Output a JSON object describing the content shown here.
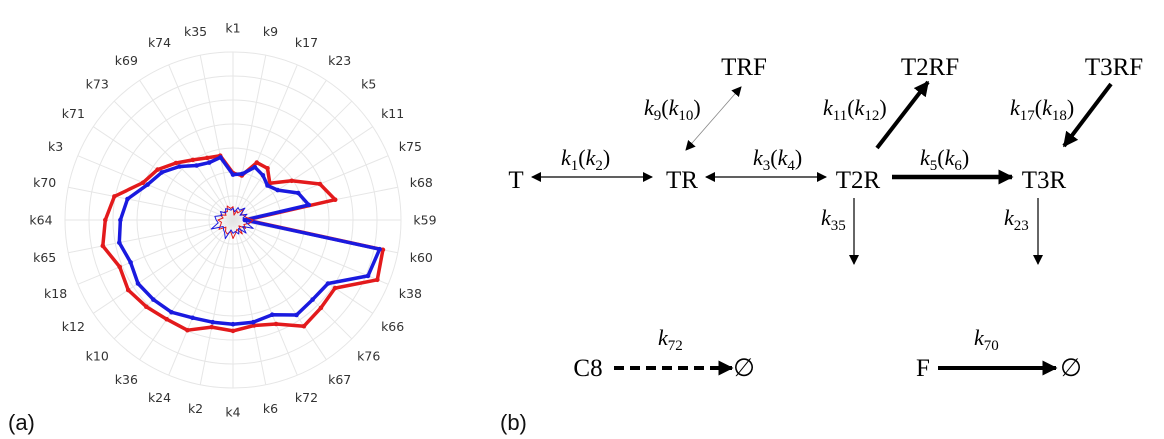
{
  "panel_labels": {
    "a": "(a)",
    "b": "(b)"
  },
  "chart_data": {
    "type": "radar",
    "categories": [
      "k1",
      "k9",
      "k17",
      "k23",
      "k5",
      "k11",
      "k75",
      "k68",
      "k59",
      "k60",
      "k38",
      "k66",
      "k76",
      "k67",
      "k72",
      "k6",
      "k4",
      "k2",
      "k24",
      "k36",
      "k10",
      "k12",
      "k18",
      "k65",
      "k64",
      "k70",
      "k3",
      "k71",
      "k73",
      "k69",
      "k74",
      "k35"
    ],
    "rlim": [
      0,
      1
    ],
    "grid": true,
    "series": [
      {
        "color": "#e31a1c",
        "line_width": 3.5,
        "values": [
          0.28,
          0.27,
          0.37,
          0.37,
          0.31,
          0.42,
          0.56,
          0.62,
          0.08,
          0.91,
          0.93,
          0.73,
          0.74,
          0.76,
          0.67,
          0.64,
          0.66,
          0.65,
          0.71,
          0.71,
          0.73,
          0.75,
          0.73,
          0.79,
          0.76,
          0.72,
          0.58,
          0.54,
          0.48,
          0.43,
          0.4,
          0.39
        ]
      },
      {
        "color": "#1a1adf",
        "line_width": 3.5,
        "values": [
          0.27,
          0.28,
          0.34,
          0.32,
          0.29,
          0.32,
          0.42,
          0.46,
          0.07,
          0.89,
          0.87,
          0.68,
          0.67,
          0.68,
          0.61,
          0.62,
          0.62,
          0.62,
          0.63,
          0.66,
          0.67,
          0.68,
          0.66,
          0.69,
          0.67,
          0.64,
          0.55,
          0.51,
          0.45,
          0.39,
          0.37,
          0.38
        ]
      },
      {
        "color": "#e31a1c",
        "line_width": 1,
        "values": [
          0.08,
          0.03,
          0.06,
          0.05,
          0.09,
          0.06,
          0.07,
          0.08,
          0.12,
          0.1,
          0.07,
          0.09,
          0.05,
          0.1,
          0.06,
          0.08,
          0.11,
          0.07,
          0.09,
          0.08,
          0.06,
          0.1,
          0.08,
          0.07,
          0.09,
          0.06,
          0.08,
          0.05,
          0.07,
          0.06,
          0.09,
          0.07
        ]
      },
      {
        "color": "#1a1adf",
        "line_width": 1,
        "values": [
          0.07,
          0.05,
          0.08,
          0.07,
          0.1,
          0.05,
          0.09,
          0.06,
          0.1,
          0.08,
          0.13,
          0.07,
          0.11,
          0.06,
          0.09,
          0.07,
          0.08,
          0.06,
          0.12,
          0.09,
          0.08,
          0.07,
          0.14,
          0.09,
          0.1,
          0.11,
          0.07,
          0.09,
          0.06,
          0.08,
          0.07,
          0.06
        ]
      }
    ]
  },
  "network": {
    "nodes": {
      "T": "T",
      "TR": "TR",
      "T2R": "T2R",
      "T3R": "T3R",
      "TRF": "TRF",
      "T2RF": "T2RF",
      "T3RF": "T3RF",
      "C8": "C8",
      "F": "F",
      "empty1": "∅",
      "empty2": "∅"
    },
    "rates": {
      "k": "k",
      "lp": "(",
      "rp": ")",
      "s1": "1",
      "s2": "2",
      "s3": "3",
      "s4": "4",
      "s5": "5",
      "s6": "6",
      "s9": "9",
      "s10": "10",
      "s11": "11",
      "s12": "12",
      "s17": "17",
      "s18": "18",
      "s35": "35",
      "s23": "23",
      "s72": "72",
      "s70": "70"
    }
  }
}
